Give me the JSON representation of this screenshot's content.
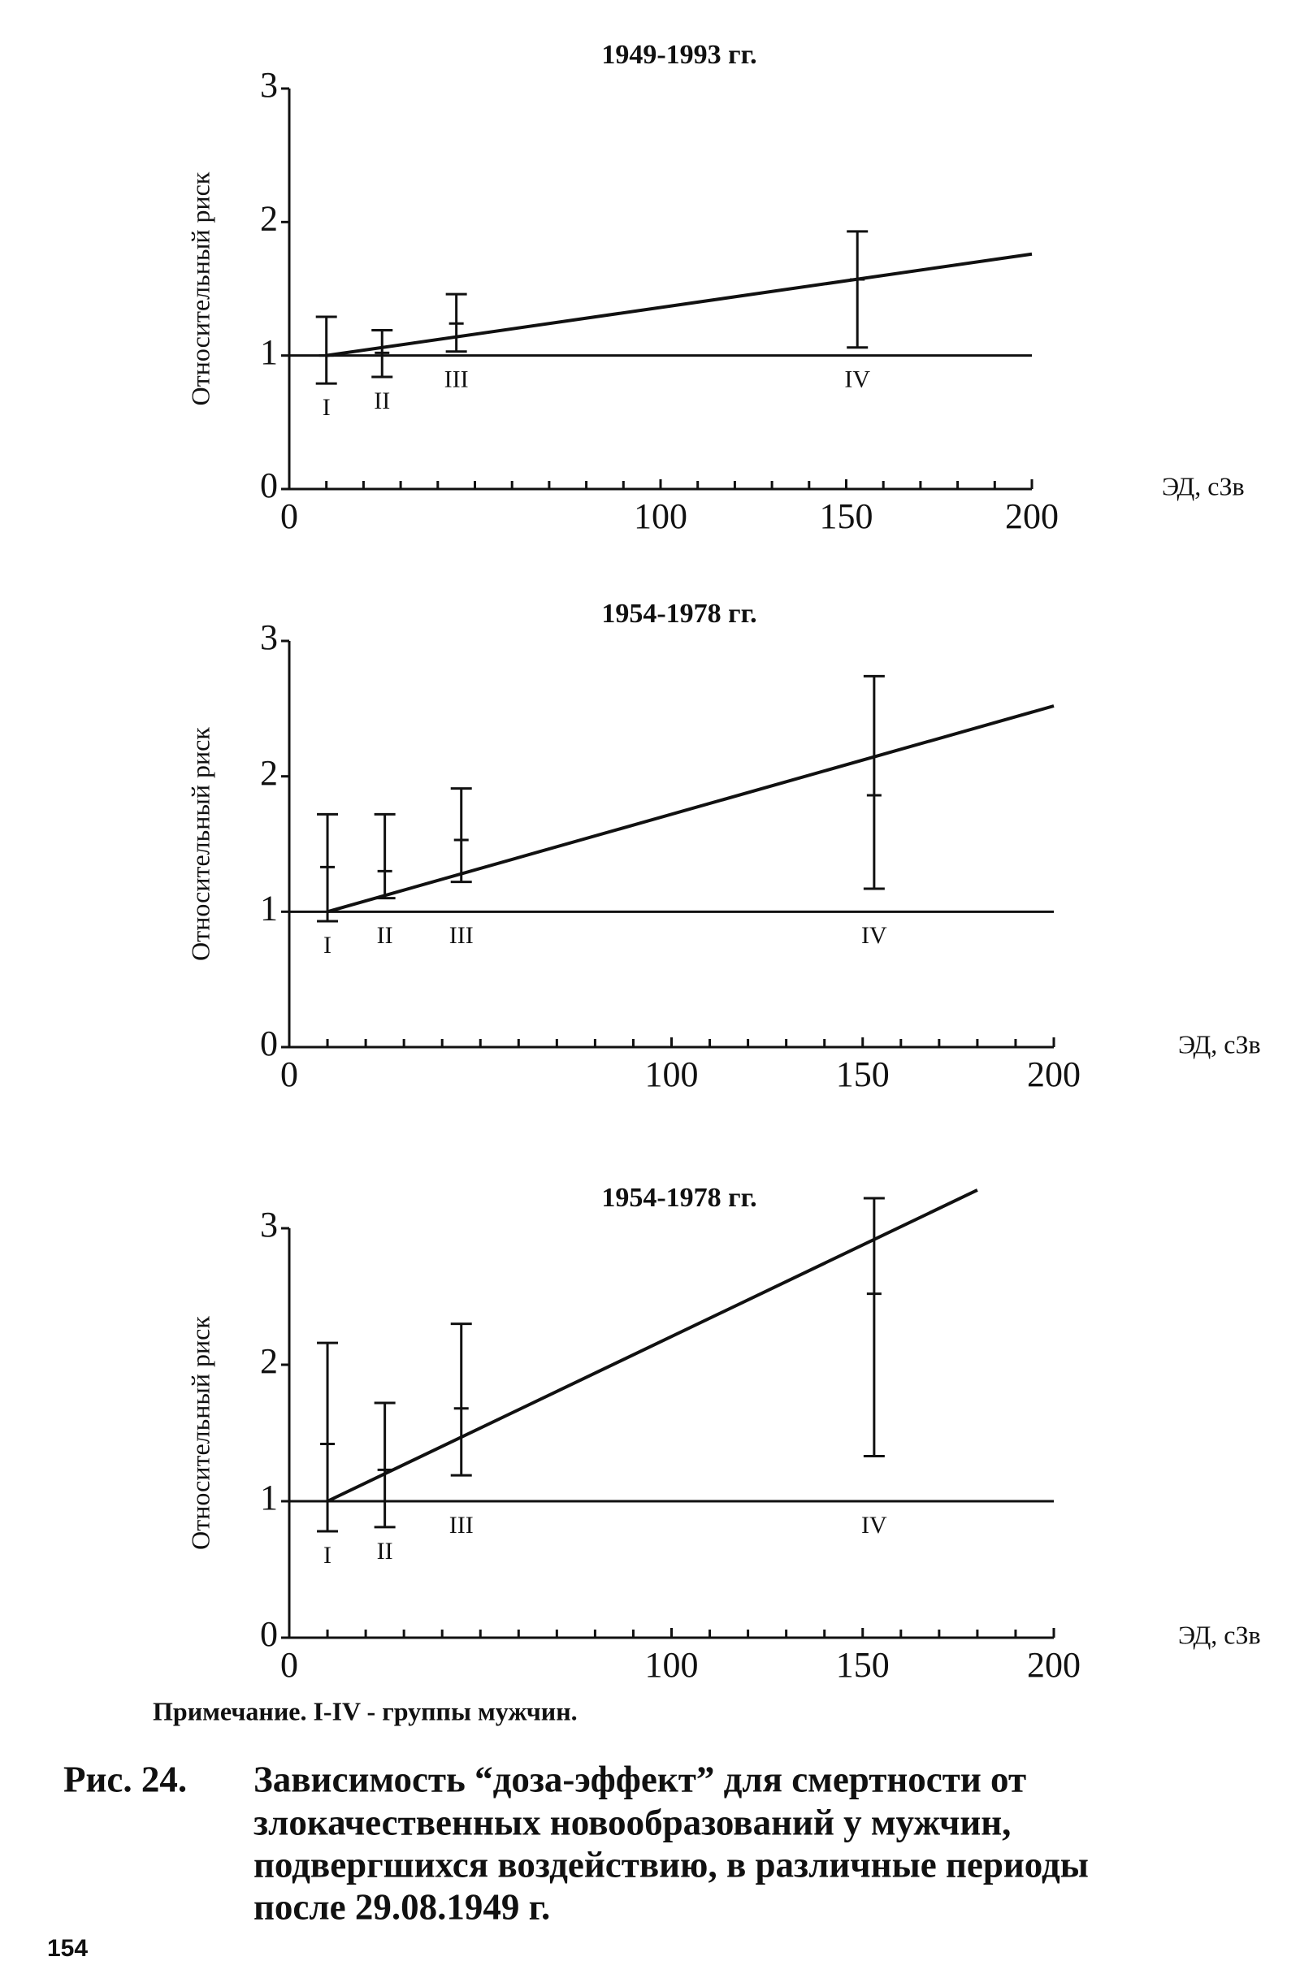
{
  "chart_data": [
    {
      "type": "errorbar",
      "title": "1949-1993 гг.",
      "xlabel": "ЭД, сЗв",
      "ylabel": "Относительный риск",
      "categories": [
        "I",
        "II",
        "III",
        "IV"
      ],
      "x": [
        10,
        25,
        45,
        153
      ],
      "values": [
        1.0,
        1.02,
        1.24,
        1.57
      ],
      "lower": [
        0.79,
        0.84,
        1.03,
        1.06
      ],
      "upper": [
        1.29,
        1.19,
        1.46,
        1.93
      ],
      "fit": {
        "x": [
          10,
          200
        ],
        "y": [
          1.0,
          1.76
        ]
      },
      "reference_line": 1,
      "xlim": [
        0,
        200
      ],
      "ylim": [
        0,
        3
      ],
      "xticks": [
        0,
        100,
        150,
        200
      ],
      "yticks": [
        0,
        1,
        2,
        3
      ],
      "xminorticks": [
        10,
        20,
        30,
        40,
        50,
        60,
        70,
        80,
        90,
        110,
        120,
        130,
        140,
        160,
        170,
        180,
        190
      ],
      "color": "#111111"
    },
    {
      "type": "errorbar",
      "title": "1954-1978 гг.",
      "xlabel": "ЭД, сЗв",
      "ylabel": "Относительный риск",
      "categories": [
        "I",
        "II",
        "III",
        "IV"
      ],
      "x": [
        10,
        25,
        45,
        153
      ],
      "values": [
        1.33,
        1.3,
        1.53,
        1.86
      ],
      "lower": [
        0.93,
        1.1,
        1.22,
        1.17
      ],
      "upper": [
        1.72,
        1.72,
        1.91,
        2.74
      ],
      "fit": {
        "x": [
          10,
          200
        ],
        "y": [
          1.0,
          2.52
        ]
      },
      "reference_line": 1,
      "xlim": [
        0,
        200
      ],
      "ylim": [
        0,
        3
      ],
      "xticks": [
        0,
        100,
        150,
        200
      ],
      "yticks": [
        0,
        1,
        2,
        3
      ],
      "xminorticks": [
        10,
        20,
        30,
        40,
        50,
        60,
        70,
        80,
        90,
        110,
        120,
        130,
        140,
        160,
        170,
        180,
        190
      ],
      "color": "#111111"
    },
    {
      "type": "errorbar",
      "title": "1954-1978 гг.",
      "xlabel": "ЭД, сЗв",
      "ylabel": "Относительный риск",
      "categories": [
        "I",
        "II",
        "III",
        "IV"
      ],
      "x": [
        10,
        25,
        45,
        153
      ],
      "values": [
        1.42,
        1.23,
        1.68,
        2.52
      ],
      "lower": [
        0.78,
        0.81,
        1.19,
        1.33
      ],
      "upper": [
        2.16,
        1.72,
        2.3,
        3.22
      ],
      "fit": {
        "x": [
          10,
          180
        ],
        "y": [
          1.0,
          3.28
        ]
      },
      "reference_line": 1,
      "xlim": [
        0,
        200
      ],
      "ylim": [
        0,
        3
      ],
      "xticks": [
        0,
        100,
        150,
        200
      ],
      "yticks": [
        0,
        1,
        2,
        3
      ],
      "xminorticks": [
        10,
        20,
        30,
        40,
        50,
        60,
        70,
        80,
        90,
        110,
        120,
        130,
        140,
        160,
        170,
        180,
        190
      ],
      "color": "#111111"
    }
  ],
  "note": "Примечание.  I-IV - группы мужчин.",
  "caption": {
    "label": "Рис. 24.",
    "lines": [
      "Зависимость “доза-эффект” для смертности от",
      "злокачественных новообразований у мужчин,",
      "подвергшихся воздействию, в различные периоды",
      "после 29.08.1949 г."
    ]
  },
  "page_number": "154"
}
